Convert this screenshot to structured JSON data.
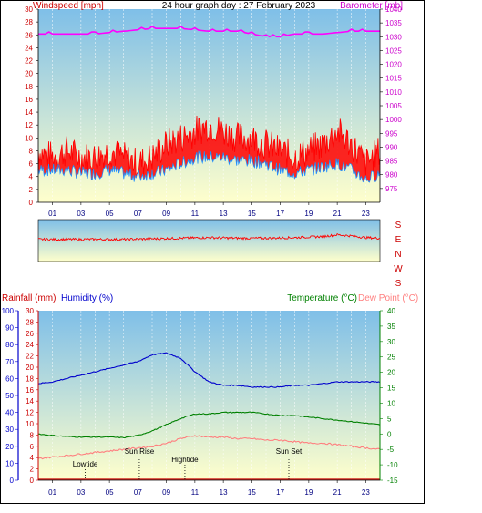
{
  "header": {
    "title": "24 hour graph day : 27 February 2023",
    "left_label": "Windspeed [mph]",
    "right_label": "Barometer [mb]"
  },
  "wind_dir": {
    "labels": [
      "S",
      "E",
      "N",
      "W",
      "S"
    ]
  },
  "bottom_header": {
    "rainfall_label": "Rainfall (mm)",
    "humidity_label": "Humidity (%)",
    "temperature_label": "Temperature (°C)",
    "dewpoint_label": "Dew Point (°C)"
  },
  "annotations": {
    "lowtide": "Lowtide",
    "sunrise": "Sun Rise",
    "hightide": "Hightide",
    "sunset": "Sun Set"
  },
  "colors": {
    "wind_gust": "#ff0000",
    "wind_avg": "#1e90ff",
    "barometer": "#ff00ff",
    "humidity": "#0000cc",
    "temperature": "#008000",
    "dewpoint": "#ff7f7f",
    "sky_top": "#7fbfe8",
    "sky_bottom": "#ffffcc"
  },
  "chart_data": [
    {
      "type": "line",
      "title": "24 hour graph day : 27 February 2023",
      "ylabel": "Windspeed [mph]",
      "y2label": "Barometer [mb]",
      "ylim": [
        0,
        30
      ],
      "y2lim": [
        970,
        1040
      ],
      "yticks": [
        "0",
        "2",
        "4",
        "6",
        "8",
        "10",
        "12",
        "14",
        "16",
        "18",
        "20",
        "22",
        "24",
        "26",
        "28",
        "30"
      ],
      "y2ticks": [
        "975",
        "980",
        "985",
        "990",
        "995",
        "1000",
        "1005",
        "1010",
        "1015",
        "1020",
        "1025",
        "1030",
        "1035",
        "1040"
      ],
      "xticks": [
        "01",
        "03",
        "05",
        "07",
        "09",
        "11",
        "13",
        "15",
        "17",
        "19",
        "21",
        "23"
      ],
      "series": [
        {
          "name": "gust",
          "x": [
            0,
            1,
            2,
            3,
            4,
            5,
            6,
            7,
            8,
            9,
            10,
            11,
            12,
            13,
            14,
            15,
            16,
            17,
            18,
            19,
            20,
            21,
            22,
            23,
            24
          ],
          "values": [
            8,
            7,
            8,
            7,
            7,
            8,
            7,
            6,
            7,
            9,
            10,
            11,
            12,
            11,
            10,
            10,
            9,
            8,
            7,
            8,
            9,
            11,
            9,
            6,
            8
          ]
        },
        {
          "name": "average",
          "x": [
            0,
            1,
            2,
            3,
            4,
            5,
            6,
            7,
            8,
            9,
            10,
            11,
            12,
            13,
            14,
            15,
            16,
            17,
            18,
            19,
            20,
            21,
            22,
            23,
            24
          ],
          "values": [
            5,
            5,
            5,
            4.5,
            4.5,
            5,
            4.5,
            4,
            4.5,
            5,
            6,
            7,
            7,
            7,
            6.5,
            6.5,
            6,
            5,
            4.5,
            5,
            5.5,
            6,
            5,
            3.5,
            4.5
          ]
        },
        {
          "name": "barometer",
          "x": [
            0,
            2,
            4,
            6,
            8,
            10,
            12,
            14,
            16,
            17,
            18,
            20,
            22,
            24
          ],
          "values": [
            1031,
            1031,
            1031,
            1032,
            1033,
            1033,
            1032,
            1032,
            1030,
            1030,
            1031,
            1031,
            1032,
            1032
          ]
        }
      ]
    },
    {
      "type": "line",
      "labels": [
        "S",
        "E",
        "N",
        "W",
        "S"
      ],
      "ylim": [
        0,
        360
      ],
      "series": [
        {
          "name": "direction",
          "x": [
            0,
            2,
            4,
            6,
            8,
            10,
            12,
            14,
            16,
            18,
            20,
            21,
            22,
            23,
            24
          ],
          "values": [
            190,
            190,
            190,
            190,
            195,
            200,
            205,
            200,
            200,
            205,
            215,
            230,
            220,
            205,
            200
          ]
        }
      ]
    },
    {
      "type": "line",
      "y1label": "Rainfall (mm)",
      "y2label": "Humidity (%)",
      "y3label": "Temperature (°C)",
      "y4label": "Dew Point (°C)",
      "ylim_humidity": [
        0,
        100
      ],
      "ylim_rain": [
        0,
        30
      ],
      "ylim_temp": [
        -15,
        40
      ],
      "humidity_ticks": [
        "0",
        "10",
        "20",
        "30",
        "40",
        "50",
        "60",
        "70",
        "80",
        "90",
        "100"
      ],
      "rain_ticks": [
        "0",
        "2",
        "4",
        "6",
        "8",
        "10",
        "12",
        "14",
        "16",
        "18",
        "20",
        "22",
        "24",
        "26",
        "28",
        "30"
      ],
      "temp_ticks": [
        "-15",
        "-10",
        "-5",
        "0",
        "5",
        "10",
        "15",
        "20",
        "25",
        "30",
        "35",
        "40"
      ],
      "xticks": [
        "01",
        "03",
        "05",
        "07",
        "09",
        "11",
        "13",
        "15",
        "17",
        "19",
        "21",
        "23"
      ],
      "series": [
        {
          "name": "humidity",
          "x": [
            0,
            1,
            2,
            3,
            4,
            5,
            6,
            7,
            8,
            9,
            10,
            11,
            12,
            13,
            14,
            15,
            16,
            17,
            18,
            19,
            20,
            21,
            22,
            23,
            24
          ],
          "values": [
            57,
            58,
            60,
            62,
            64,
            66,
            68,
            70,
            74,
            75,
            72,
            64,
            58,
            56,
            56,
            55,
            55,
            55,
            56,
            56,
            57,
            58,
            58,
            58,
            58
          ]
        },
        {
          "name": "temperature",
          "x": [
            0,
            1,
            2,
            3,
            4,
            5,
            6,
            7,
            8,
            9,
            10,
            11,
            12,
            13,
            14,
            15,
            16,
            17,
            18,
            19,
            20,
            21,
            22,
            23,
            24
          ],
          "values": [
            0,
            -0.5,
            -0.8,
            -1,
            -1,
            -1,
            -1.2,
            -0.5,
            1,
            3,
            5,
            6.5,
            6.5,
            7,
            7,
            7,
            6.5,
            6,
            6,
            5.5,
            5,
            4.5,
            4,
            3.5,
            3
          ]
        },
        {
          "name": "dewpoint",
          "x": [
            0,
            1,
            2,
            3,
            4,
            5,
            6,
            7,
            8,
            9,
            10,
            11,
            12,
            13,
            14,
            15,
            16,
            17,
            18,
            19,
            20,
            21,
            22,
            23,
            24
          ],
          "values": [
            -8,
            -7.5,
            -7,
            -6.5,
            -6,
            -5.5,
            -5,
            -4.5,
            -4,
            -3,
            -1.5,
            -0.5,
            -1,
            -1,
            -1.5,
            -1.5,
            -2,
            -2,
            -2.5,
            -3,
            -3,
            -3.5,
            -4,
            -4.5,
            -5
          ]
        },
        {
          "name": "rainfall",
          "x": [
            0,
            24
          ],
          "values": [
            0,
            0
          ]
        }
      ],
      "events": [
        {
          "label": "Lowtide",
          "hour": 3.3
        },
        {
          "label": "Sun Rise",
          "hour": 7.1
        },
        {
          "label": "Hightide",
          "hour": 10.3
        },
        {
          "label": "Sun Set",
          "hour": 17.6
        }
      ]
    }
  ]
}
